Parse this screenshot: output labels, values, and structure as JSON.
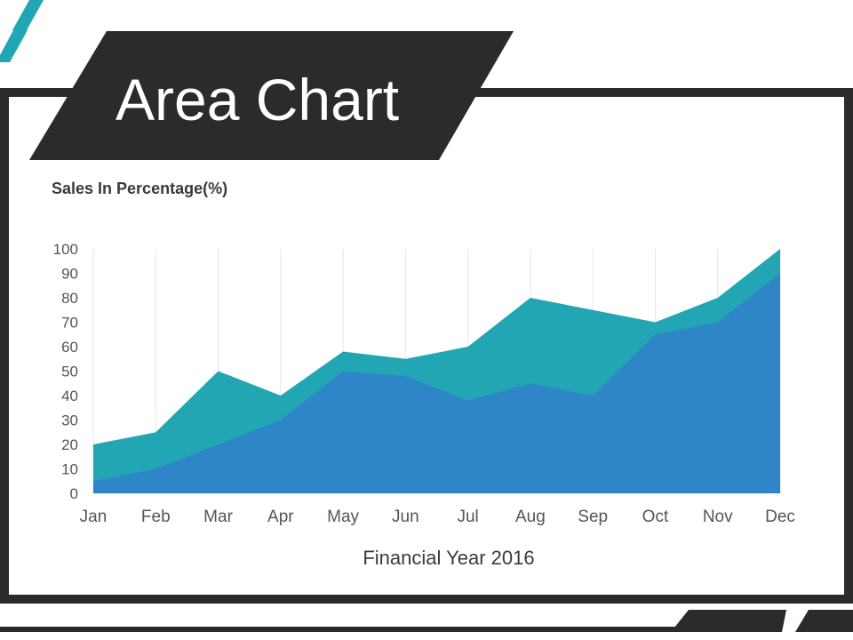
{
  "slide": {
    "title": "Area Chart"
  },
  "colors": {
    "frame": "#2b2b2b",
    "accent_teal": "#22a6b3",
    "series_front": "#2e86c8",
    "series_back": "#22a6b3",
    "background": "#ffffff"
  },
  "chart_data": {
    "type": "area",
    "ylabel": "Sales In Percentage(%)",
    "xlabel": "Financial Year 2016",
    "categories": [
      "Jan",
      "Feb",
      "Mar",
      "Apr",
      "May",
      "Jun",
      "Jul",
      "Aug",
      "Sep",
      "Oct",
      "Nov",
      "Dec"
    ],
    "yticks": [
      0,
      10,
      20,
      30,
      40,
      50,
      60,
      70,
      80,
      90,
      100
    ],
    "ylim": [
      0,
      100
    ],
    "grid": "vertical",
    "series": [
      {
        "values": [
          20,
          25,
          50,
          40,
          58,
          55,
          60,
          80,
          75,
          70,
          80,
          100
        ]
      },
      {
        "values": [
          5,
          10,
          20,
          30,
          50,
          48,
          38,
          45,
          40,
          65,
          70,
          90
        ]
      }
    ]
  }
}
